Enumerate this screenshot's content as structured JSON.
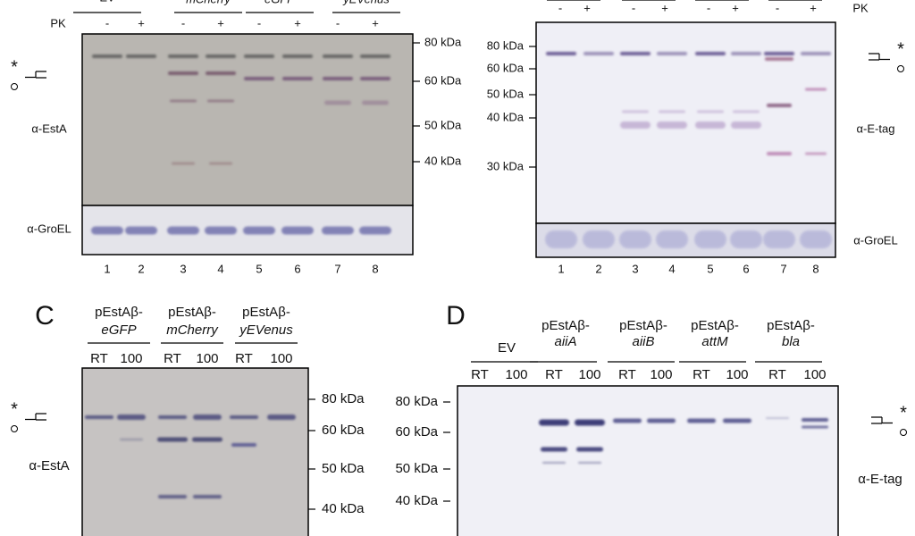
{
  "panel_a": {
    "groups": [
      "EV",
      "mCherry",
      "eGFP",
      "yEVenus"
    ],
    "treatment_label": "PK",
    "treatments": [
      "-",
      "+",
      "-",
      "+",
      "-",
      "+",
      "-",
      "+"
    ],
    "markers": [
      "80 kDa",
      "60 kDa",
      "50 kDa",
      "40 kDa"
    ],
    "antibody": "α-EstA",
    "loading_antibody": "α-GroEL",
    "lanes": [
      "1",
      "2",
      "3",
      "4",
      "5",
      "6",
      "7",
      "8"
    ],
    "band_label": "*"
  },
  "panel_b": {
    "treatment_label": "PK",
    "treatments": [
      "-",
      "+",
      "-",
      "+",
      "-",
      "+",
      "-",
      "+"
    ],
    "markers": [
      "80 kDa",
      "60 kDa",
      "50 kDa",
      "40 kDa",
      "30 kDa"
    ],
    "antibody": "α-E-tag",
    "loading_antibody": "α-GroEL",
    "lanes": [
      "1",
      "2",
      "3",
      "4",
      "5",
      "6",
      "7",
      "8"
    ],
    "band_label": "*"
  },
  "panel_c": {
    "letter": "C",
    "constructs": [
      {
        "prefix": "pEstAβ-",
        "gene": "eGFP"
      },
      {
        "prefix": "pEstAβ-",
        "gene": "mCherry"
      },
      {
        "prefix": "pEstAβ-",
        "gene": "yEVenus"
      }
    ],
    "conditions": [
      "RT",
      "100",
      "RT",
      "100",
      "RT",
      "100"
    ],
    "markers": [
      "80 kDa",
      "60 kDa",
      "50 kDa",
      "40 kDa"
    ],
    "antibody": "α-EstA",
    "band_label": "*"
  },
  "panel_d": {
    "letter": "D",
    "constructs": [
      {
        "gene": "EV"
      },
      {
        "prefix": "pEstAβ-",
        "gene": "aiiA"
      },
      {
        "prefix": "pEstAβ-",
        "gene": "aiiB"
      },
      {
        "prefix": "pEstAβ-",
        "gene": "attM"
      },
      {
        "prefix": "pEstAβ-",
        "gene": "bla"
      }
    ],
    "conditions": [
      "RT",
      "100",
      "RT",
      "100",
      "RT",
      "100",
      "RT",
      "100",
      "RT",
      "100"
    ],
    "markers": [
      "80 kDa",
      "60 kDa",
      "50 kDa",
      "40 kDa"
    ],
    "antibody": "α-E-tag",
    "band_label": "*"
  }
}
